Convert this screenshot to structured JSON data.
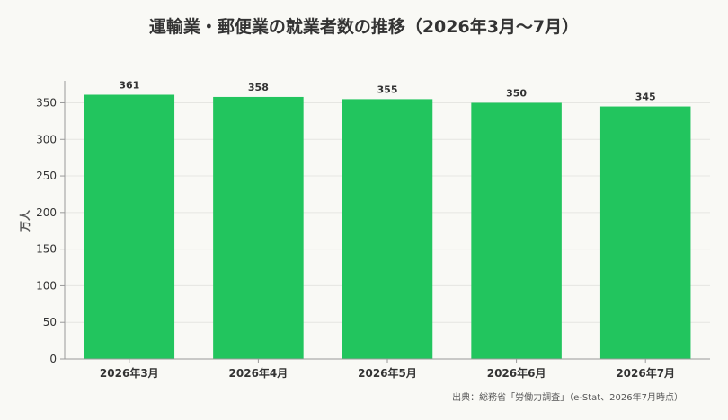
{
  "chart_data": {
    "type": "bar",
    "title": "運輸業・郵便業の就業者数の推移（2026年3月〜7月）",
    "categories": [
      "2026年3月",
      "2026年4月",
      "2026年5月",
      "2026年6月",
      "2026年7月"
    ],
    "values": [
      361,
      358,
      355,
      350,
      345
    ],
    "value_labels": [
      "361",
      "358",
      "355",
      "350",
      "345"
    ],
    "ylabel": "万人",
    "xlabel": "",
    "ylim": [
      0,
      380
    ],
    "yticks": [
      0,
      50,
      100,
      150,
      200,
      250,
      300,
      350
    ],
    "bar_color": "#22c55e",
    "grid": true,
    "source": "出典：総務省「労働力調査」（e-Stat、2026年7月時点）"
  }
}
